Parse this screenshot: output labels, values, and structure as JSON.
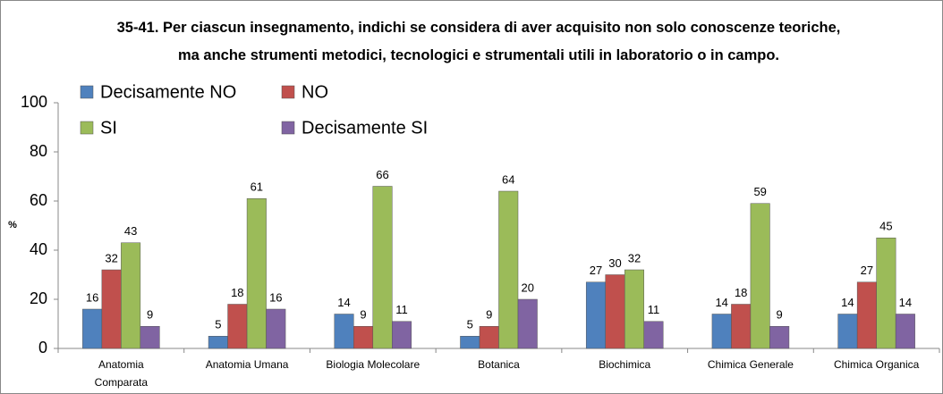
{
  "chart_data": {
    "type": "bar",
    "title": "35-41. Per ciascun insegnamento, indichi se considera di aver acquisito non solo conoscenze teoriche, ma anche strumenti metodici, tecnologici e strumentali utili in laboratorio o in campo.",
    "y_label": "%",
    "categories": [
      "Anatomia Comparata",
      "Anatomia Umana",
      "Biologia Molecolare",
      "Botanica",
      "Biochimica",
      "Chimica Generale",
      "Chimica Organica"
    ],
    "series": [
      {
        "name": "Decisamente NO",
        "color": "#4f81bd",
        "values": [
          16,
          5,
          14,
          5,
          27,
          14,
          14
        ]
      },
      {
        "name": "NO",
        "color": "#c0504d",
        "values": [
          32,
          18,
          9,
          9,
          30,
          18,
          27
        ]
      },
      {
        "name": "SI",
        "color": "#9bbb59",
        "values": [
          43,
          61,
          66,
          64,
          32,
          59,
          45
        ]
      },
      {
        "name": "Decisamente SI",
        "color": "#8064a2",
        "values": [
          9,
          16,
          11,
          20,
          11,
          9,
          14
        ]
      }
    ],
    "ylim": [
      0,
      100
    ],
    "yticks": [
      0,
      20,
      40,
      60,
      80,
      100
    ],
    "legend": "top-left",
    "grid": false
  }
}
